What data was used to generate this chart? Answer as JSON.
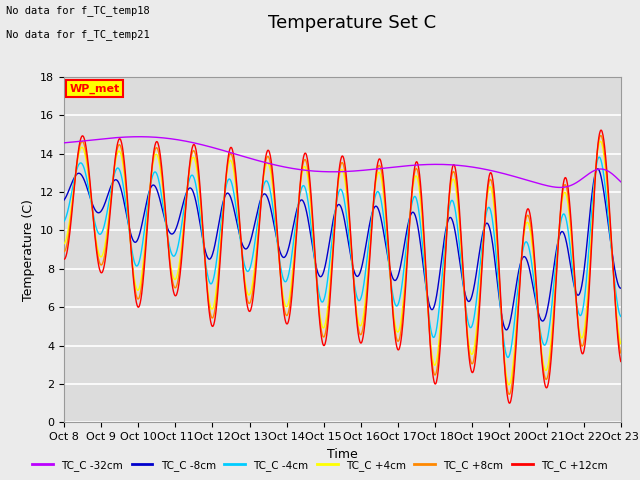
{
  "title": "Temperature Set C",
  "xlabel": "Time",
  "ylabel": "Temperature (C)",
  "note1": "No data for f_TC_temp18",
  "note2": "No data for f_TC_temp21",
  "wp_met_label": "WP_met",
  "ylim": [
    0,
    18
  ],
  "yticks": [
    0,
    2,
    4,
    6,
    8,
    10,
    12,
    14,
    16,
    18
  ],
  "xtick_labels": [
    "Oct 8",
    "Oct 9",
    "Oct 10",
    "Oct 11",
    "Oct 12",
    "Oct 13",
    "Oct 14",
    "Oct 15",
    "Oct 16",
    "Oct 17",
    "Oct 18",
    "Oct 19",
    "Oct 20",
    "Oct 21",
    "Oct 22",
    "Oct 23"
  ],
  "series_colors": {
    "TC_C -32cm": "#bb00ff",
    "TC_C -8cm": "#0000cc",
    "TC_C -4cm": "#00ccff",
    "TC_C +4cm": "#ffff00",
    "TC_C +8cm": "#ff8800",
    "TC_C +12cm": "#ff0000"
  },
  "bg_color": "#dcdcdc",
  "plot_bg_color": "#ebebeb",
  "grid_color": "#ffffff",
  "title_fontsize": 13,
  "label_fontsize": 9,
  "tick_fontsize": 8
}
